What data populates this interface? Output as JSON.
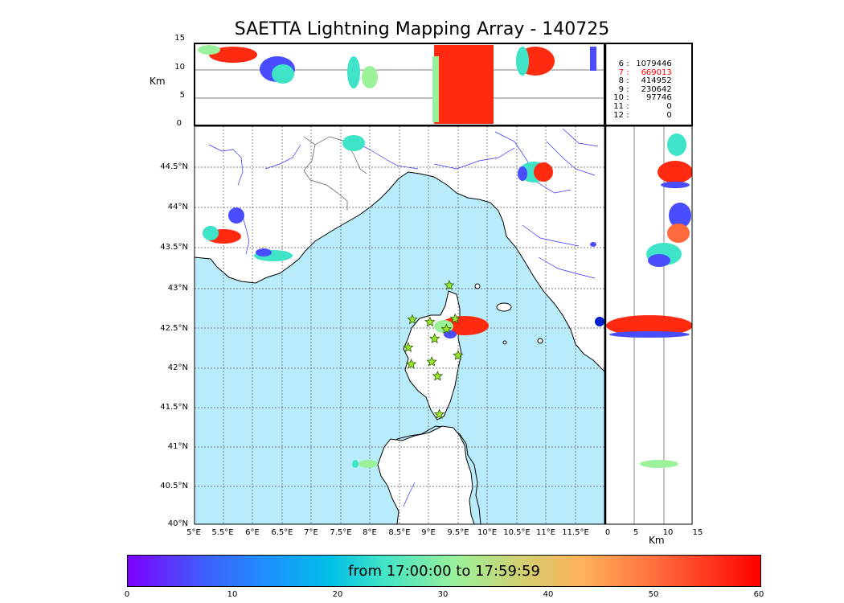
{
  "title": "SAETTA Lightning Mapping Array - 140725",
  "top_panel": {
    "ylabel": "Km",
    "yticks": [
      "15",
      "10",
      "5",
      "0"
    ]
  },
  "map_panel": {
    "lat_ticks": [
      "44.5°N",
      "44°N",
      "43.5°N",
      "43°N",
      "42.5°N",
      "42°N",
      "41.5°N",
      "41°N",
      "40.5°N",
      "40°N"
    ],
    "lon_ticks": [
      "5°E",
      "5.5°E",
      "6°E",
      "6.5°E",
      "7°E",
      "7.5°E",
      "8°E",
      "8.5°E",
      "9°E",
      "9.5°E",
      "10°E",
      "10.5°E",
      "11°E",
      "11.5°E"
    ],
    "lat_range": [
      40.0,
      45.0
    ],
    "lon_range": [
      5.0,
      12.0
    ]
  },
  "side_panel": {
    "xlabel": "Km",
    "xticks": [
      "0",
      "5",
      "10",
      "15"
    ]
  },
  "station_counts": [
    {
      "stations": "6",
      "sep": ":",
      "count": "1079446",
      "color": "#000000"
    },
    {
      "stations": "7",
      "sep": ":",
      "count": "669013",
      "color": "#ff0000"
    },
    {
      "stations": "8",
      "sep": ":",
      "count": "414952",
      "color": "#000000"
    },
    {
      "stations": "9",
      "sep": ":",
      "count": "230642",
      "color": "#000000"
    },
    {
      "stations": "10",
      "sep": ":",
      "count": "97746",
      "color": "#000000"
    },
    {
      "stations": "11",
      "sep": ":",
      "count": "0",
      "color": "#000000"
    },
    {
      "stations": "12",
      "sep": ":",
      "count": "0",
      "color": "#000000"
    }
  ],
  "colorbar": {
    "label": "from 17:00:00 to 17:59:59",
    "ticks": [
      "0",
      "10",
      "20",
      "30",
      "40",
      "50",
      "60"
    ],
    "range": [
      0,
      60
    ]
  },
  "colors": {
    "sea": "#b8ecfa",
    "rivers": "#3030ff",
    "stations": "#9ae62e",
    "early": "#4a4dff",
    "mid": "#3ee3c8",
    "late": "#ff2a10"
  },
  "stations": [
    {
      "lon": 9.35,
      "lat": 43.0
    },
    {
      "lon": 8.72,
      "lat": 42.57
    },
    {
      "lon": 9.02,
      "lat": 42.54
    },
    {
      "lon": 9.45,
      "lat": 42.58
    },
    {
      "lon": 9.3,
      "lat": 42.45
    },
    {
      "lon": 9.1,
      "lat": 42.33
    },
    {
      "lon": 8.65,
      "lat": 42.22
    },
    {
      "lon": 9.5,
      "lat": 42.12
    },
    {
      "lon": 8.7,
      "lat": 42.01
    },
    {
      "lon": 9.05,
      "lat": 42.04
    },
    {
      "lon": 9.15,
      "lat": 41.86
    },
    {
      "lon": 9.18,
      "lat": 41.38
    }
  ]
}
